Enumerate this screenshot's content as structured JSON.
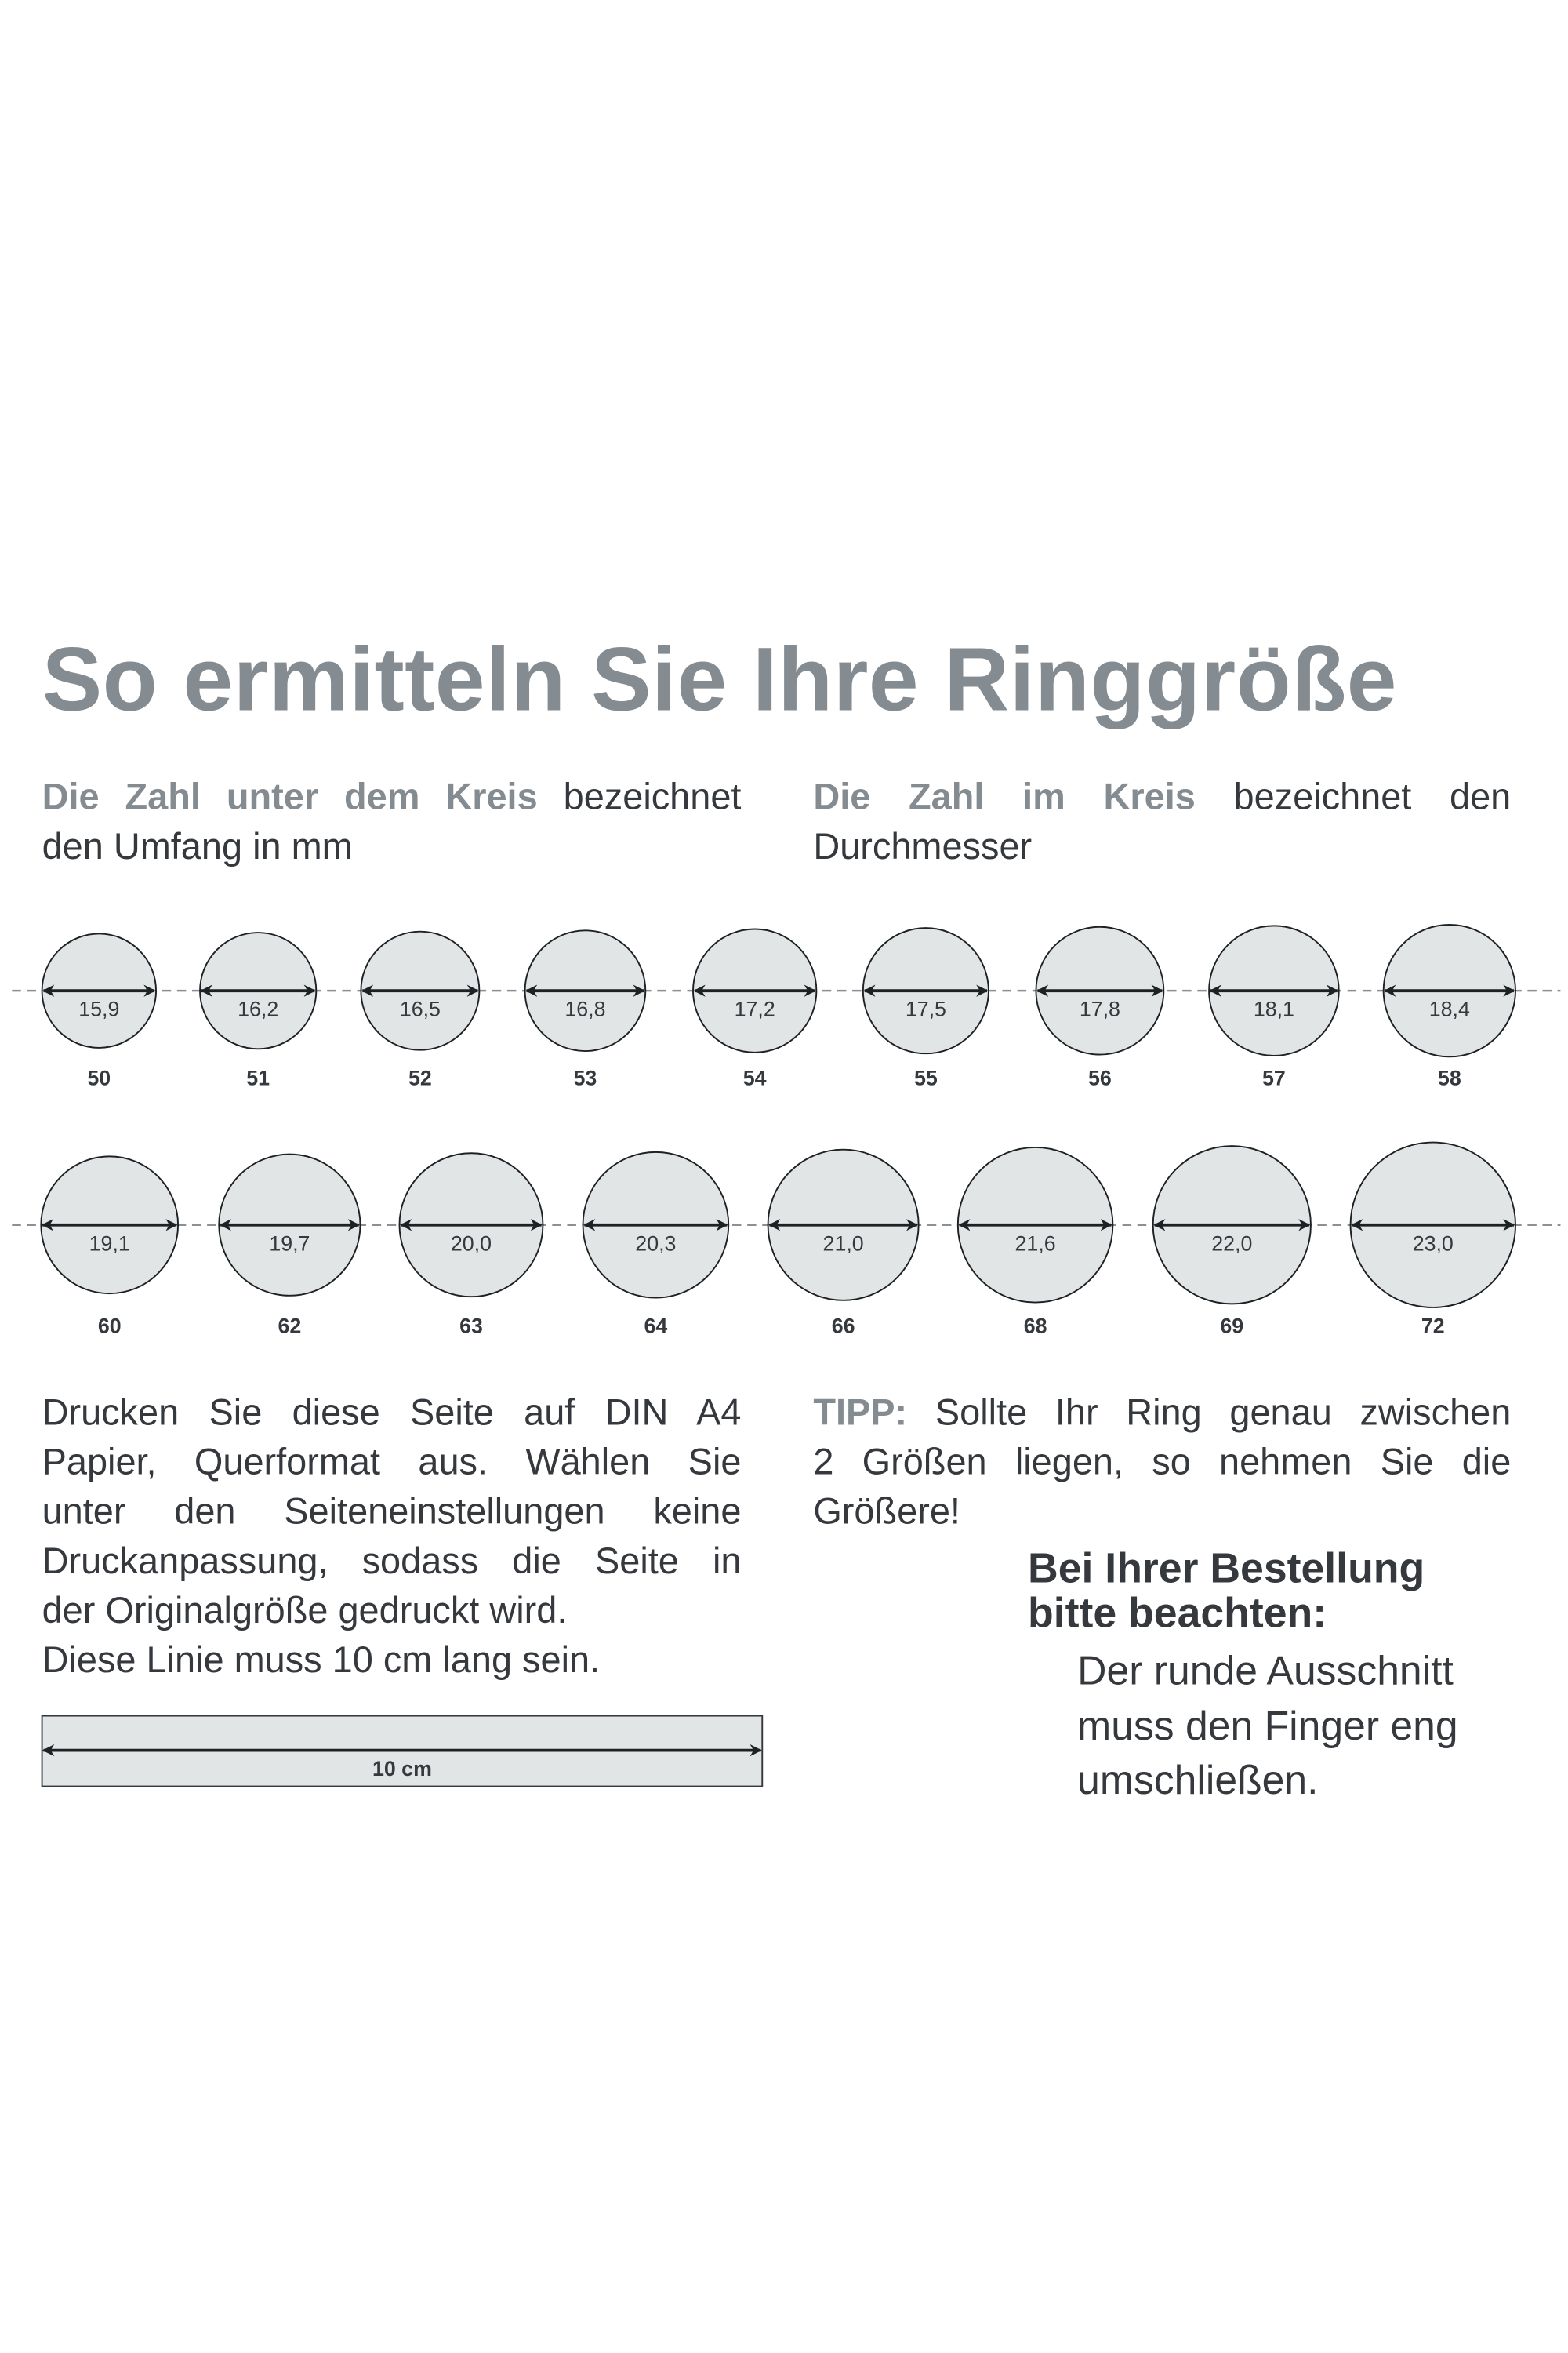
{
  "title": "So ermitteln Sie Ihre Ringgröße",
  "intro_left": {
    "highlight": "Die Zahl unter dem Kreis",
    "rest_line1": "bezeichnet",
    "line2": "den Umfang in mm"
  },
  "intro_right": {
    "highlight": "Die Zahl im Kreis",
    "rest_line1": "bezeichnet den",
    "line2": "Durchmesser"
  },
  "rings": {
    "row1": [
      {
        "diameter": "15,9",
        "size": "50"
      },
      {
        "diameter": "16,2",
        "size": "51"
      },
      {
        "diameter": "16,5",
        "size": "52"
      },
      {
        "diameter": "16,8",
        "size": "53"
      },
      {
        "diameter": "17,2",
        "size": "54"
      },
      {
        "diameter": "17,5",
        "size": "55"
      },
      {
        "diameter": "17,8",
        "size": "56"
      },
      {
        "diameter": "18,1",
        "size": "57"
      },
      {
        "diameter": "18,4",
        "size": "58"
      }
    ],
    "row2": [
      {
        "diameter": "19,1",
        "size": "60"
      },
      {
        "diameter": "19,7",
        "size": "62"
      },
      {
        "diameter": "20,0",
        "size": "63"
      },
      {
        "diameter": "20,3",
        "size": "64"
      },
      {
        "diameter": "21,0",
        "size": "66"
      },
      {
        "diameter": "21,6",
        "size": "68"
      },
      {
        "diameter": "22,0",
        "size": "69"
      },
      {
        "diameter": "23,0",
        "size": "72"
      }
    ]
  },
  "instructions": {
    "lines": [
      "Drucken Sie diese Seite auf DIN A4",
      "Papier, Querformat aus. Wählen Sie",
      "unter den Seiteneinstellungen keine",
      "Druckanpassung, sodass die Seite in",
      "der Originalgröße gedruckt wird.",
      "Diese Linie muss 10 cm lang sein."
    ]
  },
  "ruler": {
    "label": "10 cm"
  },
  "tip": {
    "label": "TIPP:",
    "line1_rest": "Sollte Ihr Ring genau zwischen",
    "line2": "2 Größen liegen, so nehmen Sie die",
    "line3": "Größere!"
  },
  "note": {
    "heading_lines": [
      "Bei Ihrer Bestellung",
      "bitte beachten:"
    ],
    "body_lines": [
      "Der runde Ausschnitt",
      "muss den Finger eng",
      "umschließen."
    ]
  },
  "colors": {
    "accent_grey": "#858c91",
    "text": "#35393d",
    "circle_fill": "#e2e5e6",
    "dash": "#8a9196"
  }
}
